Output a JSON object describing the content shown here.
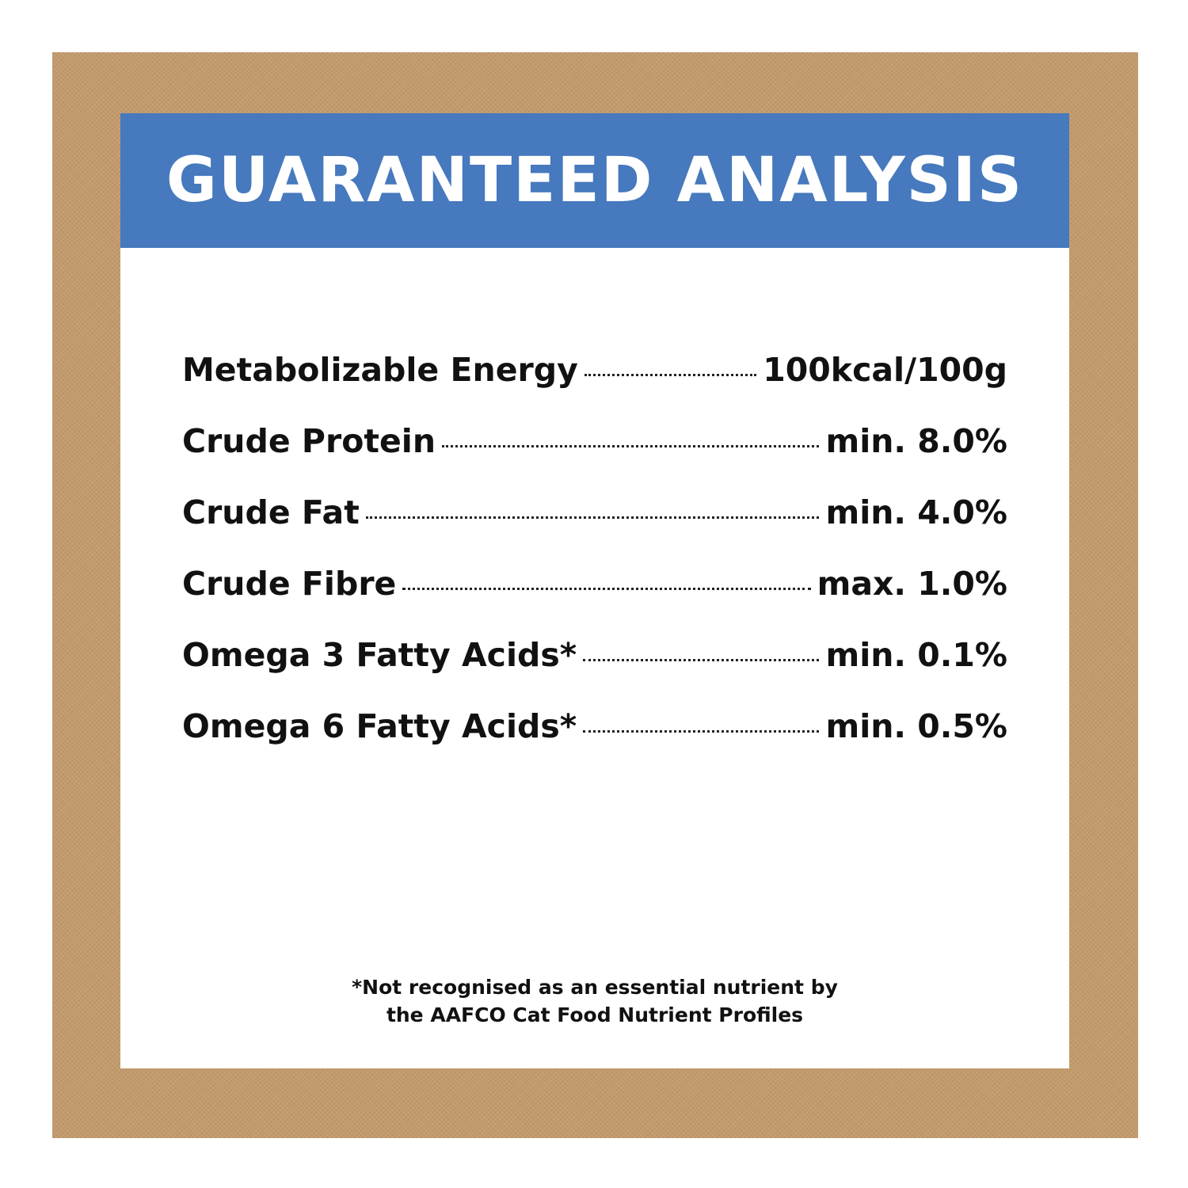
{
  "banner": {
    "title": "GUARANTEED ANALYSIS",
    "background_color": "#4679bd",
    "text_color": "#ffffff"
  },
  "frame": {
    "color": "#c29a6c"
  },
  "analysis": {
    "items": [
      {
        "label": "Metabolizable Energy",
        "value": "100kcal/100g"
      },
      {
        "label": "Crude Protein",
        "value": "min. 8.0%"
      },
      {
        "label": "Crude Fat",
        "value": "min. 4.0%"
      },
      {
        "label": "Crude Fibre",
        "value": "max. 1.0%"
      },
      {
        "label": "Omega 3 Fatty Acids*",
        "value": "min. 0.1%"
      },
      {
        "label": "Omega 6 Fatty Acids*",
        "value": "min. 0.5%"
      }
    ]
  },
  "footnote": {
    "line1": "*Not recognised as an essential nutrient by",
    "line2": "the AAFCO Cat Food Nutrient Profiles"
  }
}
